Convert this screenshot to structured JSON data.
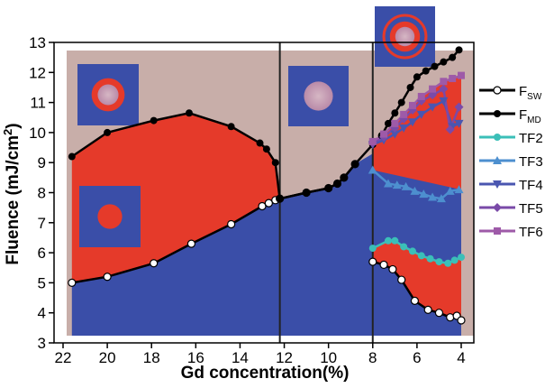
{
  "chart_data": {
    "type": "area",
    "xlabel": "Gd concentration(%)",
    "ylabel_main": "Fluence (mJ/cm",
    "ylabel_sup": "2",
    "ylabel_end": ")",
    "xlim": [
      22,
      4
    ],
    "ylim": [
      3,
      13
    ],
    "xticks": [
      22,
      20,
      18,
      16,
      14,
      12,
      10,
      8,
      6,
      4
    ],
    "yticks": [
      3,
      4,
      5,
      6,
      7,
      8,
      9,
      10,
      11,
      12,
      13
    ],
    "phase_boundaries_x": [
      12.2,
      8.0
    ],
    "colors": {
      "region_top": "#c8aea9",
      "region_red": "#e53a2a",
      "region_blue": "#3a4ea8",
      "tf2": "#3bbfb8",
      "tf3": "#4d8fcf",
      "tf4": "#4a56b0",
      "tf5": "#7a4aa8",
      "tf6": "#9e5aa8"
    },
    "series": [
      {
        "name": "F",
        "sub": "SW",
        "style": "open-circle",
        "x": [
          21.6,
          20.0,
          17.9,
          16.2,
          14.4,
          13.0,
          12.7,
          12.4,
          12.2,
          11.0,
          10.0,
          9.6,
          9.3,
          8.8,
          8.0
        ],
        "y": [
          5.0,
          5.2,
          5.65,
          6.3,
          6.95,
          7.55,
          7.65,
          7.75,
          7.8,
          8.0,
          8.15,
          8.3,
          8.5,
          8.95,
          5.7
        ]
      },
      {
        "name": "F",
        "sub": "MD",
        "style": "filled-circle",
        "x": [
          21.6,
          20.0,
          17.9,
          16.3,
          14.4,
          13.1,
          12.8,
          12.4,
          12.2,
          11.0,
          10.0,
          9.6,
          9.3,
          8.8,
          8.0,
          7.6,
          7.3,
          7.0,
          6.7,
          6.3,
          6.0,
          5.6,
          5.2,
          4.8,
          4.4,
          4.1
        ],
        "y": [
          9.2,
          10.0,
          10.4,
          10.65,
          10.2,
          9.65,
          9.45,
          9.0,
          7.8,
          8.0,
          8.15,
          8.3,
          8.5,
          8.95,
          9.6,
          9.9,
          10.3,
          10.65,
          11.0,
          11.5,
          11.85,
          12.05,
          12.2,
          12.35,
          12.5,
          12.75
        ]
      },
      {
        "name": "TF2",
        "style": "circle",
        "x": [
          8.0,
          7.3,
          7.0,
          6.6,
          6.2,
          5.8,
          5.4,
          5.0,
          4.6,
          4.3,
          4.0
        ],
        "y": [
          6.15,
          6.4,
          6.4,
          6.2,
          6.05,
          5.9,
          5.8,
          5.7,
          5.65,
          5.75,
          5.85
        ]
      },
      {
        "name": "TF3",
        "style": "triangle-up",
        "x": [
          8.0,
          7.3,
          6.9,
          6.5,
          6.1,
          5.7,
          5.3,
          4.9,
          4.5,
          4.1
        ],
        "y": [
          8.75,
          8.3,
          8.25,
          8.2,
          8.05,
          7.95,
          7.85,
          7.8,
          8.05,
          8.1
        ]
      },
      {
        "name": "TF4",
        "style": "triangle-down",
        "x": [
          8.0,
          7.5,
          7.0,
          6.6,
          6.2,
          5.8,
          5.3,
          4.8,
          4.4,
          4.1
        ],
        "y": [
          9.6,
          9.75,
          9.95,
          10.15,
          10.35,
          10.6,
          10.85,
          11.05,
          10.2,
          10.3
        ]
      },
      {
        "name": "TF5",
        "style": "diamond",
        "x": [
          8.0,
          7.5,
          7.0,
          6.6,
          6.2,
          5.8,
          5.3,
          4.8,
          4.5,
          4.1
        ],
        "y": [
          9.65,
          9.85,
          10.15,
          10.45,
          10.75,
          11.05,
          11.25,
          11.45,
          10.1,
          10.85
        ]
      },
      {
        "name": "TF6",
        "style": "square",
        "x": [
          8.0,
          7.5,
          7.0,
          6.6,
          6.2,
          5.8,
          5.3,
          4.8,
          4.4,
          4.0
        ],
        "y": [
          9.7,
          9.95,
          10.3,
          10.6,
          10.9,
          11.2,
          11.45,
          11.7,
          11.8,
          11.9
        ]
      }
    ],
    "sw_low": {
      "x": [
        8.0,
        7.5,
        7.1,
        6.7,
        6.1,
        5.5,
        5.0,
        4.5,
        4.2,
        4.0
      ],
      "y": [
        5.7,
        5.6,
        5.45,
        5.1,
        4.4,
        4.1,
        4.0,
        3.85,
        3.9,
        3.75
      ]
    },
    "legend": {
      "entries": [
        {
          "main": "F",
          "sub": "SW",
          "marker": "open-circle",
          "color": "#000000"
        },
        {
          "main": "F",
          "sub": "MD",
          "marker": "filled-circle",
          "color": "#000000"
        },
        {
          "main": "TF2",
          "sub": "",
          "marker": "circle",
          "color": "#3bbfb8"
        },
        {
          "main": "TF3",
          "sub": "",
          "marker": "triangle-up",
          "color": "#4d8fcf"
        },
        {
          "main": "TF4",
          "sub": "",
          "marker": "triangle-down",
          "color": "#4a56b0"
        },
        {
          "main": "TF5",
          "sub": "",
          "marker": "diamond",
          "color": "#7a4aa8"
        },
        {
          "main": "TF6",
          "sub": "",
          "marker": "square",
          "color": "#9e5aa8"
        }
      ]
    }
  }
}
